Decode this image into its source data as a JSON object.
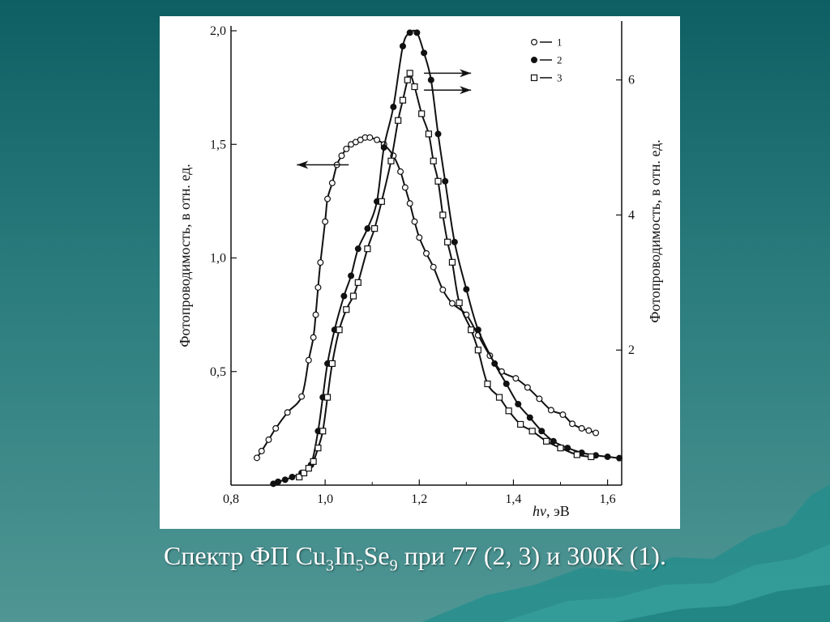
{
  "slide": {
    "caption_parts": [
      "Спектр ФП Cu",
      "3",
      "In",
      "5",
      "Se",
      "9",
      " при 77 (2, 3) и 300К (1)."
    ]
  },
  "colors": {
    "background_top": "#0d5f63",
    "background_bottom": "#4f9694",
    "plot_background": "#ffffff",
    "ink": "#111111"
  },
  "chart_data": {
    "type": "line",
    "xlabel_italic": "hν",
    "xlabel_unit": ", эВ",
    "ylabel_left": "Фотопроводимость, в отн. ед.",
    "ylabel_right": "Фотопроводимость, в отн. ед.",
    "xlim": [
      0.8,
      1.63
    ],
    "ylim_left": [
      0,
      2.0
    ],
    "ylim_right": [
      0,
      6.8
    ],
    "x_ticks": [
      0.8,
      1.0,
      1.2,
      1.4,
      1.6
    ],
    "x_tick_labels": [
      "0,8",
      "1,0",
      "1,2",
      "1,4",
      "1,6"
    ],
    "y_left_ticks": [
      0.5,
      1.0,
      1.5,
      2.0
    ],
    "y_left_tick_labels": [
      "0,5",
      "1,0",
      "1,5",
      "2,0"
    ],
    "y_right_ticks": [
      2,
      4,
      6
    ],
    "y_right_tick_labels": [
      "2",
      "4",
      "6"
    ],
    "grid": false,
    "legend_position": "top-right",
    "series": [
      {
        "name": "1",
        "marker": "open-circle",
        "axis": "left",
        "x": [
          0.855,
          0.865,
          0.88,
          0.895,
          0.92,
          0.95,
          0.965,
          0.975,
          0.98,
          0.985,
          0.99,
          1.0,
          1.005,
          1.015,
          1.025,
          1.035,
          1.045,
          1.055,
          1.065,
          1.075,
          1.085,
          1.095,
          1.11,
          1.125,
          1.145,
          1.16,
          1.17,
          1.18,
          1.19,
          1.2,
          1.215,
          1.23,
          1.25,
          1.27,
          1.3,
          1.325,
          1.35,
          1.375,
          1.405,
          1.43,
          1.455,
          1.48,
          1.505,
          1.525,
          1.545,
          1.56,
          1.575
        ],
        "y": [
          0.12,
          0.15,
          0.2,
          0.25,
          0.32,
          0.39,
          0.55,
          0.65,
          0.75,
          0.87,
          0.98,
          1.16,
          1.26,
          1.33,
          1.41,
          1.45,
          1.48,
          1.5,
          1.51,
          1.52,
          1.53,
          1.53,
          1.52,
          1.5,
          1.45,
          1.38,
          1.31,
          1.24,
          1.16,
          1.09,
          1.02,
          0.96,
          0.86,
          0.8,
          0.75,
          0.66,
          0.57,
          0.5,
          0.47,
          0.43,
          0.38,
          0.33,
          0.31,
          0.27,
          0.25,
          0.24,
          0.23
        ]
      },
      {
        "name": "2",
        "marker": "filled-circle",
        "axis": "right",
        "x": [
          0.89,
          0.9,
          0.915,
          0.93,
          0.95,
          0.97,
          0.985,
          0.995,
          1.005,
          1.02,
          1.04,
          1.055,
          1.07,
          1.09,
          1.11,
          1.125,
          1.145,
          1.165,
          1.18,
          1.195,
          1.21,
          1.225,
          1.24,
          1.255,
          1.275,
          1.3,
          1.325,
          1.36,
          1.385,
          1.41,
          1.435,
          1.46,
          1.485,
          1.515,
          1.545,
          1.575,
          1.6,
          1.625
        ],
        "y": [
          0.02,
          0.05,
          0.08,
          0.12,
          0.18,
          0.3,
          0.8,
          1.3,
          1.8,
          2.3,
          2.8,
          3.1,
          3.5,
          3.8,
          4.2,
          5.0,
          5.6,
          6.5,
          6.7,
          6.7,
          6.4,
          6.0,
          5.2,
          4.5,
          3.6,
          2.9,
          2.3,
          1.8,
          1.5,
          1.2,
          1.0,
          0.8,
          0.65,
          0.55,
          0.48,
          0.44,
          0.42,
          0.4
        ]
      },
      {
        "name": "3",
        "marker": "open-square",
        "axis": "right",
        "x": [
          0.945,
          0.955,
          0.965,
          0.975,
          0.985,
          0.995,
          1.005,
          1.015,
          1.03,
          1.045,
          1.06,
          1.07,
          1.09,
          1.105,
          1.12,
          1.14,
          1.155,
          1.165,
          1.175,
          1.18,
          1.19,
          1.205,
          1.22,
          1.23,
          1.24,
          1.25,
          1.26,
          1.27,
          1.285,
          1.31,
          1.325,
          1.345,
          1.37,
          1.39,
          1.415,
          1.44,
          1.47,
          1.5,
          1.535,
          1.565
        ],
        "y": [
          0.12,
          0.18,
          0.25,
          0.35,
          0.55,
          0.8,
          1.3,
          1.8,
          2.3,
          2.6,
          2.8,
          3.0,
          3.5,
          3.8,
          4.2,
          4.8,
          5.4,
          5.7,
          6.0,
          6.1,
          5.9,
          5.5,
          5.2,
          4.8,
          4.5,
          4.0,
          3.6,
          3.3,
          2.7,
          2.3,
          2.0,
          1.5,
          1.3,
          1.1,
          0.9,
          0.8,
          0.65,
          0.55,
          0.45,
          0.42
        ]
      }
    ],
    "annotations": [
      {
        "type": "arrow",
        "direction": "left",
        "near_series": "1"
      },
      {
        "type": "arrow",
        "direction": "right",
        "near_series": "2"
      },
      {
        "type": "arrow",
        "direction": "right",
        "near_series": "3"
      }
    ]
  }
}
